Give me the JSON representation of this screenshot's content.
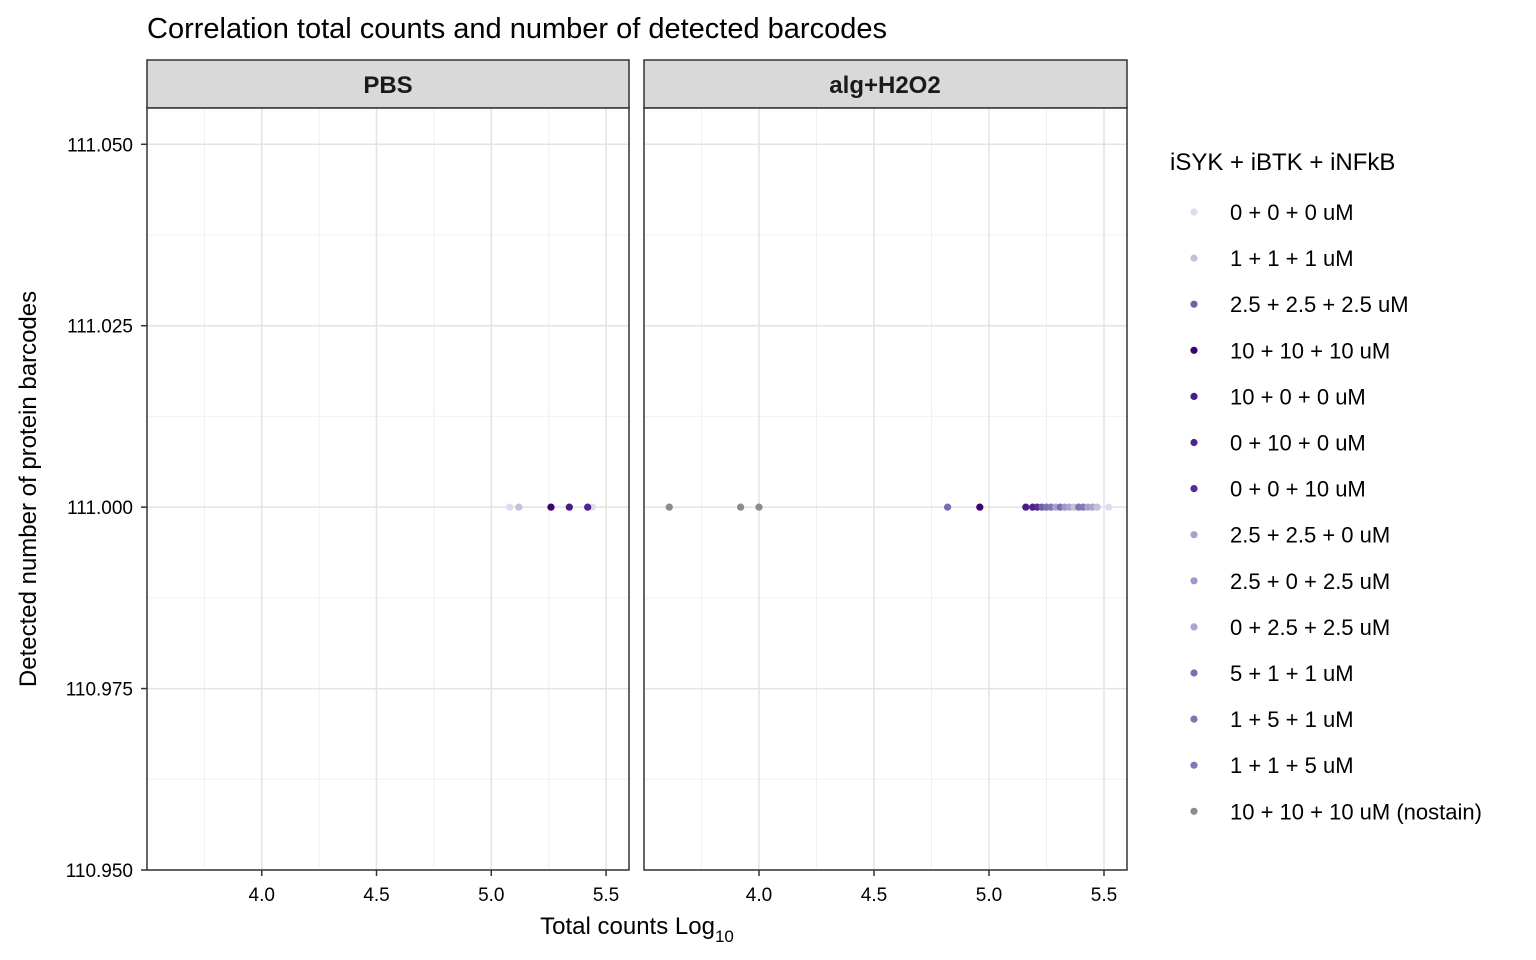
{
  "chart_data": {
    "type": "scatter",
    "title": "Correlation total counts and number of detected barcodes",
    "xlabel_main": "Total counts Log",
    "xlabel_sub": "10",
    "ylabel": "Detected number of protein barcodes",
    "xlim": [
      3.5,
      5.6
    ],
    "ylim": [
      110.95,
      111.055
    ],
    "x_ticks": [
      4.0,
      4.5,
      5.0,
      5.5
    ],
    "x_tick_labels": [
      "4.0",
      "4.5",
      "5.0",
      "5.5"
    ],
    "y_ticks": [
      110.95,
      110.975,
      111.0,
      111.025,
      111.05
    ],
    "y_tick_labels": [
      "110.950",
      "110.975",
      "111.000",
      "111.025",
      "111.050"
    ],
    "grid": true,
    "legend_position": "right",
    "legend_title": "iSYK + iBTK + iNFkB",
    "legend": [
      {
        "label": "0 + 0 + 0 uM",
        "color": "#dcdcef"
      },
      {
        "label": "1 + 1 + 1 uM",
        "color": "#c2c2df"
      },
      {
        "label": "2.5 + 2.5 + 2.5 uM",
        "color": "#7060a8"
      },
      {
        "label": "10 + 10 + 10 uM",
        "color": "#3f0070"
      },
      {
        "label": "10 + 0 + 0 uM",
        "color": "#4b1b8a"
      },
      {
        "label": "0 + 10 + 0 uM",
        "color": "#4e2291"
      },
      {
        "label": "0 + 0 + 10 uM",
        "color": "#542c95"
      },
      {
        "label": "2.5 + 2.5 + 0 uM",
        "color": "#a8a3cd"
      },
      {
        "label": "2.5 + 0 + 2.5 uM",
        "color": "#9e98c8"
      },
      {
        "label": "0 + 2.5 + 2.5 uM",
        "color": "#aaa6d2"
      },
      {
        "label": "5 + 1 + 1 uM",
        "color": "#7a6fb5"
      },
      {
        "label": "1 + 5 + 1 uM",
        "color": "#7d74b1"
      },
      {
        "label": "1 + 1 + 5 uM",
        "color": "#8078b8"
      },
      {
        "label": "10 + 10 + 10 uM (nostain)",
        "color": "#8c8c8c"
      }
    ],
    "panels": [
      {
        "label": "PBS",
        "points": [
          {
            "x": 5.08,
            "y": 111.0,
            "group": "0 + 0 + 0 uM"
          },
          {
            "x": 5.12,
            "y": 111.0,
            "group": "1 + 1 + 1 uM"
          },
          {
            "x": 5.44,
            "y": 111.0,
            "group": "0 + 0 + 0 uM"
          },
          {
            "x": 5.26,
            "y": 111.0,
            "group": "10 + 10 + 10 uM"
          },
          {
            "x": 5.34,
            "y": 111.0,
            "group": "10 + 0 + 0 uM"
          },
          {
            "x": 5.42,
            "y": 111.0,
            "group": "0 + 10 + 0 uM"
          }
        ]
      },
      {
        "label": "alg+H2O2",
        "points": [
          {
            "x": 3.61,
            "y": 111.0,
            "group": "10 + 10 + 10 uM (nostain)"
          },
          {
            "x": 3.92,
            "y": 111.0,
            "group": "10 + 10 + 10 uM (nostain)"
          },
          {
            "x": 4.0,
            "y": 111.0,
            "group": "10 + 10 + 10 uM (nostain)"
          },
          {
            "x": 4.82,
            "y": 111.0,
            "group": "5 + 1 + 1 uM"
          },
          {
            "x": 4.96,
            "y": 111.0,
            "group": "10 + 10 + 10 uM"
          },
          {
            "x": 5.16,
            "y": 111.0,
            "group": "10 + 0 + 0 uM"
          },
          {
            "x": 5.19,
            "y": 111.0,
            "group": "0 + 10 + 0 uM"
          },
          {
            "x": 5.21,
            "y": 111.0,
            "group": "0 + 0 + 10 uM"
          },
          {
            "x": 5.23,
            "y": 111.0,
            "group": "2.5 + 2.5 + 2.5 uM"
          },
          {
            "x": 5.25,
            "y": 111.0,
            "group": "1 + 5 + 1 uM"
          },
          {
            "x": 5.27,
            "y": 111.0,
            "group": "1 + 1 + 5 uM"
          },
          {
            "x": 5.29,
            "y": 111.0,
            "group": "2.5 + 2.5 + 0 uM"
          },
          {
            "x": 5.31,
            "y": 111.0,
            "group": "5 + 1 + 1 uM"
          },
          {
            "x": 5.33,
            "y": 111.0,
            "group": "2.5 + 0 + 2.5 uM"
          },
          {
            "x": 5.35,
            "y": 111.0,
            "group": "0 + 2.5 + 2.5 uM"
          },
          {
            "x": 5.37,
            "y": 111.0,
            "group": "1 + 1 + 1 uM"
          },
          {
            "x": 5.39,
            "y": 111.0,
            "group": "1 + 5 + 1 uM"
          },
          {
            "x": 5.41,
            "y": 111.0,
            "group": "1 + 1 + 5 uM"
          },
          {
            "x": 5.43,
            "y": 111.0,
            "group": "2.5 + 2.5 + 0 uM"
          },
          {
            "x": 5.45,
            "y": 111.0,
            "group": "0 + 2.5 + 2.5 uM"
          },
          {
            "x": 5.47,
            "y": 111.0,
            "group": "1 + 1 + 1 uM"
          },
          {
            "x": 5.52,
            "y": 111.0,
            "group": "0 + 0 + 0 uM"
          }
        ]
      }
    ]
  }
}
